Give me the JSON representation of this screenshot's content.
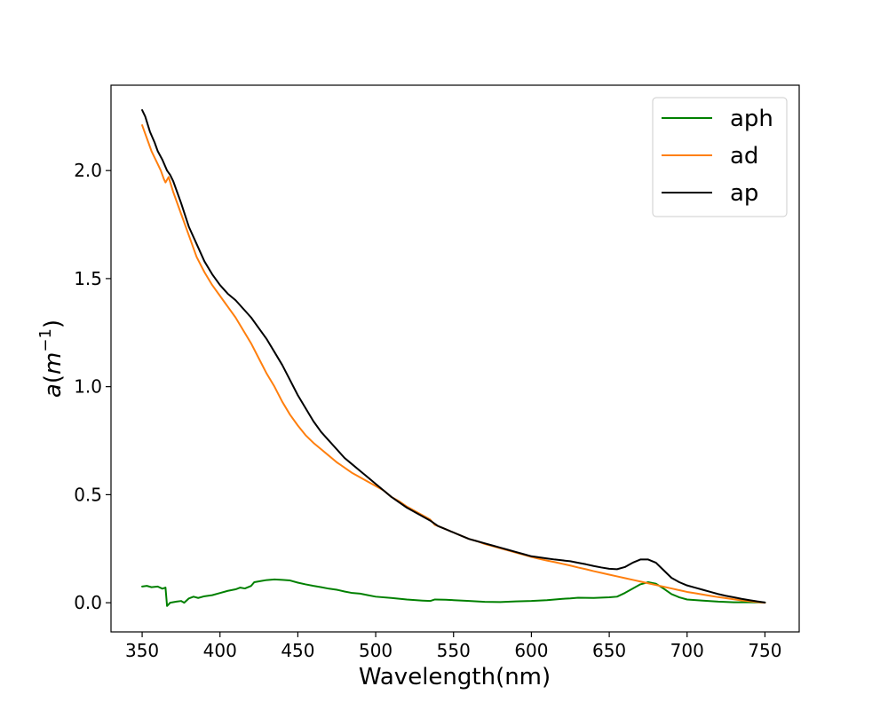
{
  "chart_data": {
    "type": "line",
    "title": "",
    "xlabel": "Wavelength(nm)",
    "ylabel": {
      "base": "a",
      "open": "(",
      "var": "m",
      "sup": "−1",
      "close": ")"
    },
    "xlim": [
      330,
      772
    ],
    "ylim": [
      -0.135,
      2.395
    ],
    "xticks": [
      350,
      400,
      450,
      500,
      550,
      600,
      650,
      700,
      750
    ],
    "yticks": [
      0.0,
      0.5,
      1.0,
      1.5,
      2.0
    ],
    "ytick_labels": [
      "0.0",
      "0.5",
      "1.0",
      "1.5",
      "2.0"
    ],
    "grid": false,
    "legend": {
      "position": "top-right"
    },
    "series": [
      {
        "name": "aph",
        "color": "#008000",
        "points": [
          [
            350,
            0.075
          ],
          [
            353,
            0.078
          ],
          [
            356,
            0.072
          ],
          [
            360,
            0.075
          ],
          [
            363,
            0.065
          ],
          [
            365,
            0.07
          ],
          [
            366,
            -0.015
          ],
          [
            368,
            0.0
          ],
          [
            372,
            0.005
          ],
          [
            375,
            0.008
          ],
          [
            377,
            0.0
          ],
          [
            380,
            0.02
          ],
          [
            383,
            0.028
          ],
          [
            386,
            0.022
          ],
          [
            390,
            0.03
          ],
          [
            395,
            0.035
          ],
          [
            400,
            0.045
          ],
          [
            405,
            0.055
          ],
          [
            410,
            0.062
          ],
          [
            413,
            0.07
          ],
          [
            416,
            0.066
          ],
          [
            420,
            0.078
          ],
          [
            422,
            0.095
          ],
          [
            426,
            0.1
          ],
          [
            430,
            0.105
          ],
          [
            435,
            0.108
          ],
          [
            440,
            0.106
          ],
          [
            445,
            0.103
          ],
          [
            450,
            0.093
          ],
          [
            455,
            0.085
          ],
          [
            460,
            0.078
          ],
          [
            465,
            0.072
          ],
          [
            470,
            0.065
          ],
          [
            475,
            0.06
          ],
          [
            480,
            0.052
          ],
          [
            485,
            0.045
          ],
          [
            490,
            0.042
          ],
          [
            495,
            0.035
          ],
          [
            500,
            0.028
          ],
          [
            510,
            0.022
          ],
          [
            520,
            0.015
          ],
          [
            530,
            0.01
          ],
          [
            535,
            0.008
          ],
          [
            538,
            0.015
          ],
          [
            545,
            0.014
          ],
          [
            550,
            0.012
          ],
          [
            560,
            0.008
          ],
          [
            570,
            0.004
          ],
          [
            580,
            0.003
          ],
          [
            590,
            0.006
          ],
          [
            600,
            0.008
          ],
          [
            610,
            0.012
          ],
          [
            620,
            0.018
          ],
          [
            625,
            0.02
          ],
          [
            630,
            0.023
          ],
          [
            640,
            0.022
          ],
          [
            650,
            0.025
          ],
          [
            655,
            0.028
          ],
          [
            660,
            0.045
          ],
          [
            665,
            0.065
          ],
          [
            670,
            0.085
          ],
          [
            675,
            0.095
          ],
          [
            680,
            0.088
          ],
          [
            685,
            0.065
          ],
          [
            690,
            0.04
          ],
          [
            695,
            0.025
          ],
          [
            700,
            0.015
          ],
          [
            710,
            0.01
          ],
          [
            720,
            0.005
          ],
          [
            730,
            0.002
          ],
          [
            740,
            0.002
          ],
          [
            750,
            0.001
          ]
        ]
      },
      {
        "name": "ad",
        "color": "#ff7f0e",
        "points": [
          [
            350,
            2.21
          ],
          [
            353,
            2.15
          ],
          [
            356,
            2.09
          ],
          [
            360,
            2.03
          ],
          [
            362,
            2.0
          ],
          [
            364,
            1.96
          ],
          [
            365,
            1.945
          ],
          [
            367,
            1.97
          ],
          [
            370,
            1.9
          ],
          [
            375,
            1.8
          ],
          [
            380,
            1.7
          ],
          [
            385,
            1.6
          ],
          [
            390,
            1.53
          ],
          [
            395,
            1.47
          ],
          [
            400,
            1.42
          ],
          [
            405,
            1.37
          ],
          [
            410,
            1.32
          ],
          [
            415,
            1.26
          ],
          [
            420,
            1.2
          ],
          [
            425,
            1.13
          ],
          [
            430,
            1.06
          ],
          [
            435,
            1.0
          ],
          [
            440,
            0.93
          ],
          [
            445,
            0.87
          ],
          [
            450,
            0.82
          ],
          [
            455,
            0.775
          ],
          [
            460,
            0.74
          ],
          [
            465,
            0.71
          ],
          [
            470,
            0.68
          ],
          [
            475,
            0.65
          ],
          [
            480,
            0.625
          ],
          [
            485,
            0.6
          ],
          [
            490,
            0.58
          ],
          [
            495,
            0.56
          ],
          [
            500,
            0.54
          ],
          [
            505,
            0.52
          ],
          [
            510,
            0.49
          ],
          [
            515,
            0.47
          ],
          [
            520,
            0.445
          ],
          [
            525,
            0.425
          ],
          [
            530,
            0.405
          ],
          [
            535,
            0.385
          ],
          [
            538,
            0.36
          ],
          [
            540,
            0.355
          ],
          [
            545,
            0.34
          ],
          [
            550,
            0.325
          ],
          [
            555,
            0.31
          ],
          [
            560,
            0.295
          ],
          [
            565,
            0.285
          ],
          [
            570,
            0.272
          ],
          [
            575,
            0.262
          ],
          [
            580,
            0.252
          ],
          [
            585,
            0.242
          ],
          [
            590,
            0.232
          ],
          [
            595,
            0.222
          ],
          [
            600,
            0.212
          ],
          [
            605,
            0.203
          ],
          [
            610,
            0.195
          ],
          [
            615,
            0.188
          ],
          [
            620,
            0.18
          ],
          [
            625,
            0.172
          ],
          [
            630,
            0.163
          ],
          [
            635,
            0.155
          ],
          [
            640,
            0.146
          ],
          [
            645,
            0.138
          ],
          [
            650,
            0.13
          ],
          [
            655,
            0.122
          ],
          [
            660,
            0.114
          ],
          [
            665,
            0.106
          ],
          [
            670,
            0.098
          ],
          [
            675,
            0.09
          ],
          [
            680,
            0.082
          ],
          [
            685,
            0.074
          ],
          [
            690,
            0.066
          ],
          [
            695,
            0.058
          ],
          [
            700,
            0.05
          ],
          [
            705,
            0.044
          ],
          [
            710,
            0.038
          ],
          [
            715,
            0.032
          ],
          [
            720,
            0.026
          ],
          [
            725,
            0.021
          ],
          [
            730,
            0.016
          ],
          [
            735,
            0.011
          ],
          [
            740,
            0.007
          ],
          [
            745,
            0.003
          ],
          [
            750,
            0.0
          ]
        ]
      },
      {
        "name": "ap",
        "color": "#000000",
        "points": [
          [
            350,
            2.28
          ],
          [
            352,
            2.25
          ],
          [
            355,
            2.18
          ],
          [
            358,
            2.13
          ],
          [
            360,
            2.09
          ],
          [
            363,
            2.05
          ],
          [
            366,
            2.0
          ],
          [
            368,
            1.98
          ],
          [
            370,
            1.95
          ],
          [
            375,
            1.85
          ],
          [
            380,
            1.74
          ],
          [
            385,
            1.66
          ],
          [
            390,
            1.58
          ],
          [
            395,
            1.52
          ],
          [
            400,
            1.47
          ],
          [
            405,
            1.43
          ],
          [
            410,
            1.4
          ],
          [
            415,
            1.36
          ],
          [
            420,
            1.32
          ],
          [
            425,
            1.27
          ],
          [
            430,
            1.22
          ],
          [
            435,
            1.16
          ],
          [
            440,
            1.1
          ],
          [
            445,
            1.03
          ],
          [
            450,
            0.96
          ],
          [
            455,
            0.9
          ],
          [
            460,
            0.84
          ],
          [
            465,
            0.79
          ],
          [
            470,
            0.75
          ],
          [
            475,
            0.71
          ],
          [
            480,
            0.67
          ],
          [
            485,
            0.64
          ],
          [
            490,
            0.61
          ],
          [
            495,
            0.58
          ],
          [
            500,
            0.55
          ],
          [
            505,
            0.52
          ],
          [
            510,
            0.49
          ],
          [
            515,
            0.465
          ],
          [
            520,
            0.44
          ],
          [
            525,
            0.42
          ],
          [
            530,
            0.4
          ],
          [
            535,
            0.38
          ],
          [
            540,
            0.355
          ],
          [
            545,
            0.34
          ],
          [
            550,
            0.325
          ],
          [
            555,
            0.31
          ],
          [
            560,
            0.295
          ],
          [
            565,
            0.285
          ],
          [
            570,
            0.275
          ],
          [
            575,
            0.265
          ],
          [
            580,
            0.255
          ],
          [
            585,
            0.245
          ],
          [
            590,
            0.235
          ],
          [
            595,
            0.225
          ],
          [
            600,
            0.215
          ],
          [
            605,
            0.21
          ],
          [
            610,
            0.205
          ],
          [
            615,
            0.2
          ],
          [
            620,
            0.196
          ],
          [
            625,
            0.192
          ],
          [
            630,
            0.185
          ],
          [
            635,
            0.178
          ],
          [
            640,
            0.17
          ],
          [
            645,
            0.163
          ],
          [
            650,
            0.157
          ],
          [
            655,
            0.155
          ],
          [
            660,
            0.165
          ],
          [
            665,
            0.185
          ],
          [
            670,
            0.2
          ],
          [
            675,
            0.2
          ],
          [
            680,
            0.185
          ],
          [
            685,
            0.15
          ],
          [
            690,
            0.115
          ],
          [
            695,
            0.095
          ],
          [
            700,
            0.08
          ],
          [
            705,
            0.07
          ],
          [
            710,
            0.06
          ],
          [
            715,
            0.05
          ],
          [
            720,
            0.04
          ],
          [
            725,
            0.032
          ],
          [
            730,
            0.025
          ],
          [
            735,
            0.018
          ],
          [
            740,
            0.012
          ],
          [
            745,
            0.006
          ],
          [
            750,
            0.001
          ]
        ]
      }
    ]
  }
}
